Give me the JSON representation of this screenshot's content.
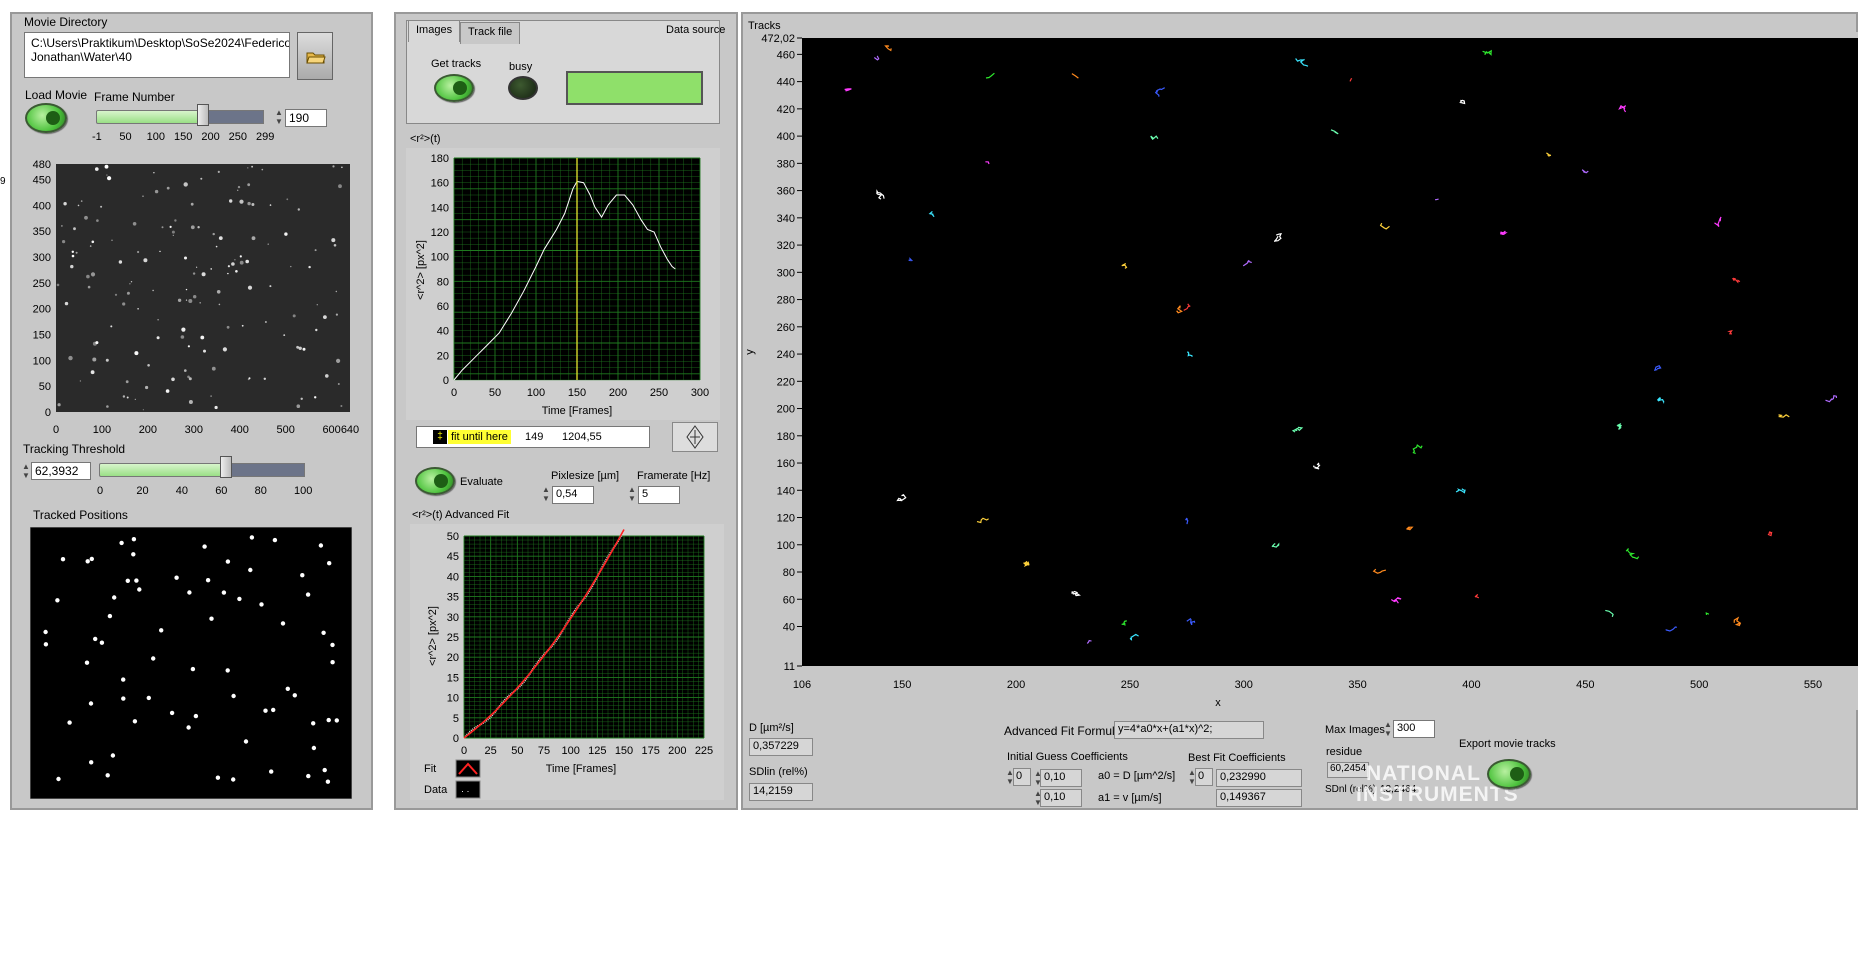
{
  "left_panel": {
    "movie_directory_label": "Movie Directory",
    "movie_directory_value_line1": "C:\\Users\\Praktikum\\Desktop\\SoSe2024\\Federico",
    "movie_directory_value_line2": "Jonathan\\Water\\40",
    "folder_icon": "folder-open-icon",
    "load_movie_label": "Load Movie",
    "frame_number_label": "Frame Number",
    "frame_number_value": "190",
    "frame_slider_ticks": [
      "-1",
      "50",
      "100",
      "150",
      "200",
      "250",
      "299"
    ],
    "frame_slider_fraction": 0.64,
    "image_y_ticks": [
      "480",
      "450",
      "400",
      "350",
      "300",
      "250",
      "200",
      "150",
      "100",
      "50",
      "0"
    ],
    "image_x_ticks": [
      "0",
      "100",
      "200",
      "300",
      "400",
      "500",
      "600",
      "640"
    ],
    "tracking_threshold_label": "Tracking Threshold",
    "tracking_threshold_value": "62,3932",
    "threshold_slider_ticks": [
      "0",
      "20",
      "40",
      "60",
      "80",
      "100"
    ],
    "threshold_slider_fraction": 0.624,
    "tracked_positions_label": "Tracked Positions"
  },
  "middle_panel": {
    "tabs": [
      {
        "label": "Images"
      },
      {
        "label": "Track file"
      }
    ],
    "data_source_label": "Data source",
    "get_tracks_label": "Get tracks",
    "busy_label": "busy",
    "msd_plot_title": "<r²>(t)",
    "msd_plot": {
      "ylabel": "<r^2> [px^2]",
      "xlabel": "Time [Frames]",
      "y_ticks": [
        "180",
        "160",
        "140",
        "120",
        "100",
        "80",
        "60",
        "40",
        "20",
        "0"
      ],
      "x_ticks": [
        "0",
        "50",
        "100",
        "150",
        "200",
        "250",
        "300"
      ],
      "cursor_x": 150
    },
    "cursor_row": {
      "name": "fit until here",
      "x": "149",
      "y": "1204,55"
    },
    "evaluate_label": "Evaluate",
    "pixelsize_label": "Pixlesize [µm]",
    "pixelsize_value": "0,54",
    "framerate_label": "Framerate [Hz]",
    "framerate_value": "5",
    "advanced_fit_title": "<r²>(t) Advanced Fit",
    "fit_plot": {
      "ylabel": "<r^2> [px^2]",
      "xlabel": "Time [Frames]",
      "y_ticks": [
        "50",
        "45",
        "40",
        "35",
        "30",
        "25",
        "20",
        "15",
        "10",
        "5",
        "0"
      ],
      "x_ticks": [
        "0",
        "25",
        "50",
        "75",
        "100",
        "125",
        "150",
        "175",
        "200",
        "225"
      ]
    },
    "legend": {
      "fit_label": "Fit",
      "data_label": "Data"
    }
  },
  "right_panel": {
    "tracks_title": "Tracks",
    "tracks_plot": {
      "ylabel": "y",
      "xlabel": "x",
      "y_ticks": [
        "472,02",
        "460",
        "440",
        "420",
        "400",
        "380",
        "360",
        "340",
        "320",
        "300",
        "280",
        "260",
        "240",
        "220",
        "200",
        "180",
        "160",
        "140",
        "120",
        "100",
        "80",
        "60",
        "40",
        "11"
      ],
      "x_ticks": [
        "106",
        "150",
        "200",
        "250",
        "300",
        "350",
        "400",
        "450",
        "500",
        "550"
      ]
    },
    "d_label": "D [µm²/s]",
    "d_value": "0,357229",
    "sdlin_label": "SDlin (rel%)",
    "sdlin_value": "14,2159",
    "advanced_fit_formula_label": "Advanced Fit Formula",
    "advanced_fit_formula_value": "y=4*a0*x+(a1*x)^2;",
    "initial_guess_label": "Initial Guess Coefficients",
    "initial_index": "0",
    "initial_a0": "0,10",
    "initial_a1": "0,10",
    "a0_label": "a0 = D [µm^2/s]",
    "a1_label": "a1 = v [µm/s]",
    "best_fit_label": "Best Fit Coefficients",
    "best_index": "0",
    "best_a0": "0,232990",
    "best_a1": "0,149367",
    "max_images_label": "Max Images",
    "max_images_value": "300",
    "residue_label": "residue",
    "residue_value": "60,2454",
    "sdnl_label": "SDnl (rel%)",
    "sdnl_value": "13,2464",
    "export_label": "Export movie tracks",
    "watermark_line1": "NATIONAL",
    "watermark_line2": "INSTRUMENTS"
  },
  "colors": {
    "panel": "#c8c8c8",
    "plot_bg": "#000000",
    "grid": "#1f7a1f",
    "accent_green": "#8fe06a"
  }
}
